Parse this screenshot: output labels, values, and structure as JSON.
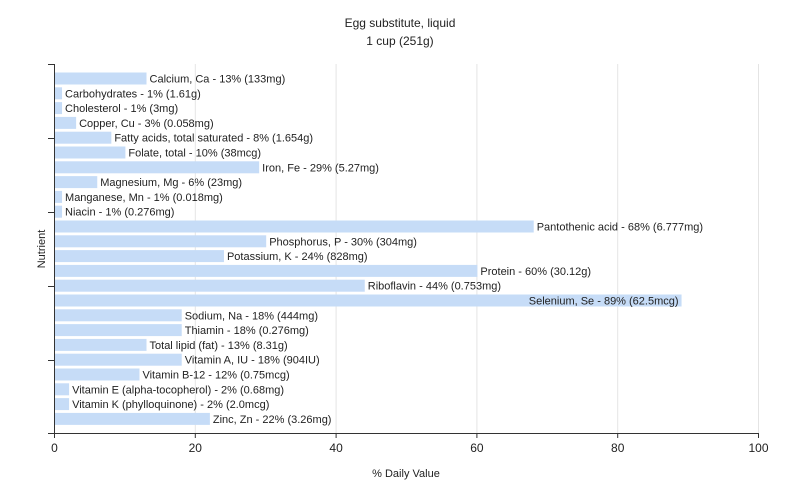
{
  "chart_data": {
    "type": "bar",
    "orientation": "horizontal",
    "title": "Egg substitute, liquid",
    "subtitle": "1 cup (251g)",
    "xlabel": "% Daily Value",
    "ylabel": "Nutrient",
    "xlim": [
      0,
      100
    ],
    "xticks": [
      0,
      20,
      40,
      60,
      80,
      100
    ],
    "grid": true,
    "bar_color": "#c6dcf7",
    "categories": [
      "Calcium, Ca",
      "Carbohydrates",
      "Cholesterol",
      "Copper, Cu",
      "Fatty acids, total saturated",
      "Folate, total",
      "Iron, Fe",
      "Magnesium, Mg",
      "Manganese, Mn",
      "Niacin",
      "Pantothenic acid",
      "Phosphorus, P",
      "Potassium, K",
      "Protein",
      "Riboflavin",
      "Selenium, Se",
      "Sodium, Na",
      "Thiamin",
      "Total lipid (fat)",
      "Vitamin A, IU",
      "Vitamin B-12",
      "Vitamin E (alpha-tocopherol)",
      "Vitamin K (phylloquinone)",
      "Zinc, Zn"
    ],
    "values": [
      13,
      1,
      1,
      3,
      8,
      10,
      29,
      6,
      1,
      1,
      68,
      30,
      24,
      60,
      44,
      89,
      18,
      18,
      13,
      18,
      12,
      2,
      2,
      22
    ],
    "labels": [
      "Calcium, Ca - 13% (133mg)",
      "Carbohydrates - 1% (1.61g)",
      "Cholesterol - 1% (3mg)",
      "Copper, Cu - 3% (0.058mg)",
      "Fatty acids, total saturated - 8% (1.654g)",
      "Folate, total - 10% (38mcg)",
      "Iron, Fe - 29% (5.27mg)",
      "Magnesium, Mg - 6% (23mg)",
      "Manganese, Mn - 1% (0.018mg)",
      "Niacin - 1% (0.276mg)",
      "Pantothenic acid - 68% (6.777mg)",
      "Phosphorus, P - 30% (304mg)",
      "Potassium, K - 24% (828mg)",
      "Protein - 60% (30.12g)",
      "Riboflavin - 44% (0.753mg)",
      "Selenium, Se - 89% (62.5mcg)",
      "Sodium, Na - 18% (444mg)",
      "Thiamin - 18% (0.276mg)",
      "Total lipid (fat) - 13% (8.31g)",
      "Vitamin A, IU - 18% (904IU)",
      "Vitamin B-12 - 12% (0.75mcg)",
      "Vitamin E (alpha-tocopherol) - 2% (0.68mg)",
      "Vitamin K (phylloquinone) - 2% (2.0mcg)",
      "Zinc, Zn - 22% (3.26mg)"
    ]
  }
}
